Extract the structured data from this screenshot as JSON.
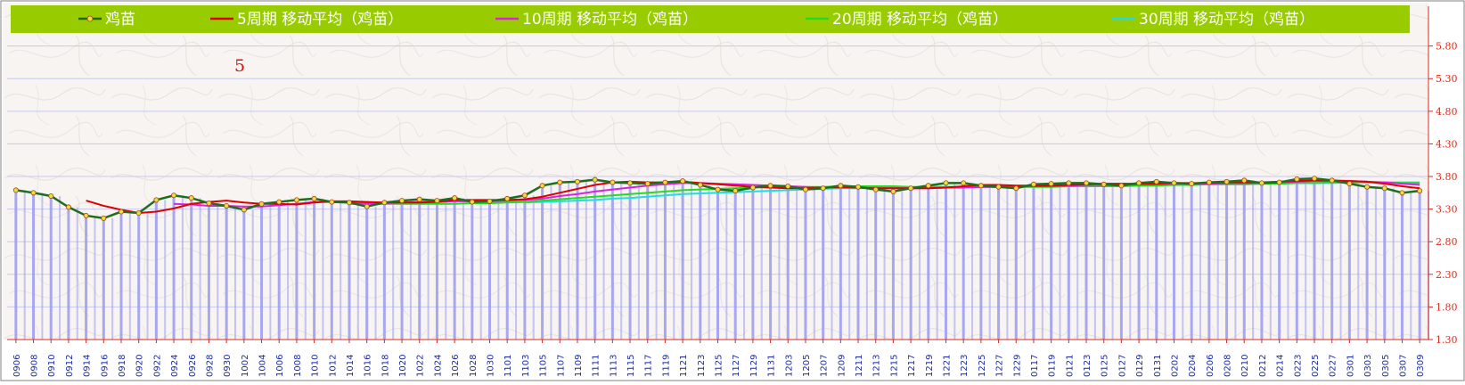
{
  "chart_data": {
    "type": "line",
    "title": "",
    "xlabel": "",
    "ylabel": "",
    "annotation": "5",
    "ylim": [
      1.3,
      6.0
    ],
    "yticks": [
      1.3,
      1.8,
      2.3,
      2.8,
      3.3,
      3.8,
      4.3,
      4.8,
      5.3,
      5.8
    ],
    "ytick_labels": [
      "1.30",
      "1.80",
      "2.30",
      "2.80",
      "3.30",
      "3.80",
      "4.30",
      "4.80",
      "5.30",
      "5.80"
    ],
    "x": [
      "0906",
      "0908",
      "0910",
      "0912",
      "0914",
      "0916",
      "0918",
      "0920",
      "0922",
      "0924",
      "0926",
      "0928",
      "0930",
      "1002",
      "1004",
      "1006",
      "1008",
      "1010",
      "1012",
      "1014",
      "1016",
      "1018",
      "1020",
      "1022",
      "1024",
      "1026",
      "1028",
      "1030",
      "1101",
      "1103",
      "1105",
      "1107",
      "1109",
      "1111",
      "1113",
      "1115",
      "1117",
      "1119",
      "1121",
      "1123",
      "1125",
      "1127",
      "1129",
      "1131",
      "1203",
      "1205",
      "1207",
      "1209",
      "1211",
      "1213",
      "1215",
      "1217",
      "1219",
      "1221",
      "1223",
      "1225",
      "1227",
      "1229",
      "0117",
      "0119",
      "0121",
      "0123",
      "0125",
      "0127",
      "0129",
      "0131",
      "0202",
      "0204",
      "0206",
      "0208",
      "0210",
      "0212",
      "0214",
      "0223",
      "0225",
      "0227",
      "0301",
      "0303",
      "0305",
      "0307",
      "0309"
    ],
    "grid": true,
    "legend_position": "top",
    "colors": {
      "legend_bg": "#99cc00",
      "plot_bg": "#f7f4f1",
      "gridline": "#c8c8f0",
      "bar": "#9a9af0",
      "ytick": "#e22a1a",
      "xtick": "#1a2aa8"
    },
    "series": [
      {
        "name": "鸡苗",
        "color": "#1e6e1e",
        "marker": "circle",
        "values": [
          3.59,
          3.55,
          3.5,
          3.33,
          3.2,
          3.16,
          3.26,
          3.24,
          3.44,
          3.51,
          3.47,
          3.39,
          3.35,
          3.29,
          3.38,
          3.41,
          3.44,
          3.46,
          3.41,
          3.4,
          3.34,
          3.4,
          3.43,
          3.45,
          3.43,
          3.47,
          3.41,
          3.42,
          3.46,
          3.51,
          3.66,
          3.71,
          3.72,
          3.75,
          3.71,
          3.7,
          3.69,
          3.71,
          3.73,
          3.67,
          3.6,
          3.58,
          3.63,
          3.66,
          3.65,
          3.6,
          3.62,
          3.66,
          3.64,
          3.6,
          3.57,
          3.62,
          3.66,
          3.7,
          3.7,
          3.66,
          3.64,
          3.62,
          3.68,
          3.69,
          3.7,
          3.7,
          3.68,
          3.66,
          3.7,
          3.72,
          3.7,
          3.69,
          3.71,
          3.72,
          3.74,
          3.7,
          3.71,
          3.76,
          3.77,
          3.74,
          3.69,
          3.64,
          3.62,
          3.55,
          3.58
        ]
      },
      {
        "name": "5周期  移动平均（鸡苗）",
        "color": "#dd0000",
        "marker": "none",
        "values": [
          null,
          null,
          null,
          null,
          3.43,
          3.35,
          3.29,
          3.24,
          3.26,
          3.31,
          3.38,
          3.41,
          3.43,
          3.4,
          3.38,
          3.38,
          3.37,
          3.4,
          3.42,
          3.42,
          3.41,
          3.4,
          3.4,
          3.4,
          3.41,
          3.44,
          3.44,
          3.44,
          3.44,
          3.45,
          3.49,
          3.55,
          3.61,
          3.67,
          3.71,
          3.72,
          3.71,
          3.71,
          3.72,
          3.7,
          3.68,
          3.66,
          3.64,
          3.63,
          3.62,
          3.62,
          3.63,
          3.64,
          3.63,
          3.62,
          3.62,
          3.62,
          3.62,
          3.63,
          3.65,
          3.67,
          3.67,
          3.66,
          3.66,
          3.66,
          3.67,
          3.68,
          3.69,
          3.69,
          3.69,
          3.69,
          3.7,
          3.7,
          3.7,
          3.71,
          3.71,
          3.71,
          3.72,
          3.73,
          3.74,
          3.74,
          3.73,
          3.72,
          3.69,
          3.65,
          3.62
        ]
      },
      {
        "name": "10周期  移动平均（鸡苗）",
        "color": "#dd22dd",
        "marker": "none",
        "values": [
          null,
          null,
          null,
          null,
          null,
          null,
          null,
          null,
          null,
          3.38,
          3.37,
          3.35,
          3.35,
          3.34,
          3.34,
          3.36,
          3.38,
          3.41,
          3.41,
          3.4,
          3.39,
          3.39,
          3.4,
          3.41,
          3.41,
          3.42,
          3.42,
          3.42,
          3.43,
          3.44,
          3.46,
          3.5,
          3.53,
          3.57,
          3.6,
          3.63,
          3.66,
          3.68,
          3.7,
          3.7,
          3.69,
          3.68,
          3.67,
          3.66,
          3.65,
          3.64,
          3.63,
          3.63,
          3.63,
          3.62,
          3.62,
          3.62,
          3.62,
          3.63,
          3.63,
          3.64,
          3.64,
          3.64,
          3.65,
          3.65,
          3.66,
          3.67,
          3.67,
          3.67,
          3.68,
          3.68,
          3.69,
          3.69,
          3.69,
          3.7,
          3.7,
          3.7,
          3.71,
          3.72,
          3.73,
          3.73,
          3.73,
          3.72,
          3.71,
          3.69,
          3.67
        ]
      },
      {
        "name": "20周期  移动平均（鸡苗）",
        "color": "#22dd22",
        "marker": "none",
        "values": [
          null,
          null,
          null,
          null,
          null,
          null,
          null,
          null,
          null,
          null,
          null,
          null,
          null,
          null,
          null,
          null,
          null,
          null,
          null,
          3.38,
          3.38,
          3.38,
          3.38,
          3.38,
          3.38,
          3.38,
          3.39,
          3.39,
          3.4,
          3.41,
          3.43,
          3.45,
          3.47,
          3.49,
          3.51,
          3.53,
          3.55,
          3.57,
          3.59,
          3.6,
          3.61,
          3.62,
          3.63,
          3.64,
          3.64,
          3.64,
          3.64,
          3.65,
          3.65,
          3.65,
          3.65,
          3.64,
          3.64,
          3.64,
          3.64,
          3.64,
          3.64,
          3.64,
          3.64,
          3.64,
          3.65,
          3.65,
          3.65,
          3.65,
          3.66,
          3.66,
          3.67,
          3.67,
          3.68,
          3.68,
          3.68,
          3.69,
          3.69,
          3.7,
          3.7,
          3.71,
          3.71,
          3.71,
          3.71,
          3.7,
          3.7
        ]
      },
      {
        "name": "30周期  移动平均（鸡苗）",
        "color": "#22dddd",
        "marker": "none",
        "values": [
          null,
          null,
          null,
          null,
          null,
          null,
          null,
          null,
          null,
          null,
          null,
          null,
          null,
          null,
          null,
          null,
          null,
          null,
          null,
          null,
          null,
          null,
          null,
          null,
          null,
          null,
          null,
          null,
          null,
          3.4,
          3.41,
          3.42,
          3.43,
          3.44,
          3.46,
          3.47,
          3.49,
          3.51,
          3.53,
          3.54,
          3.55,
          3.56,
          3.57,
          3.58,
          3.59,
          3.6,
          3.61,
          3.62,
          3.62,
          3.63,
          3.63,
          3.63,
          3.64,
          3.64,
          3.64,
          3.64,
          3.64,
          3.64,
          3.65,
          3.65,
          3.65,
          3.65,
          3.66,
          3.66,
          3.66,
          3.67,
          3.67,
          3.67,
          3.68,
          3.68,
          3.68,
          3.69,
          3.69,
          3.7,
          3.7,
          3.7,
          3.71,
          3.71,
          3.71,
          3.71,
          3.71
        ]
      }
    ]
  }
}
